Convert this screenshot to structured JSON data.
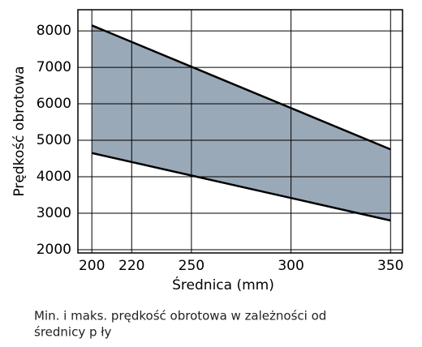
{
  "chart_data": {
    "type": "range",
    "x_label": "Średnica (mm)",
    "y_label": "Prędkość obrotowa",
    "caption": [
      "Min. i maks. prędkość obrotowa w zależności od",
      "średnicy p ły"
    ],
    "x": [
      200,
      350
    ],
    "low": [
      4650,
      2800
    ],
    "high": [
      8150,
      4750
    ],
    "color": "#9aa9b8",
    "line_color": "#000000",
    "xlim": [
      193,
      356
    ],
    "xticks": [
      200,
      220,
      250,
      300,
      350
    ],
    "ylim": [
      1910,
      8580
    ],
    "yticks": [
      2000,
      3000,
      4000,
      5000,
      6000,
      7000,
      8000
    ],
    "grid": true
  }
}
